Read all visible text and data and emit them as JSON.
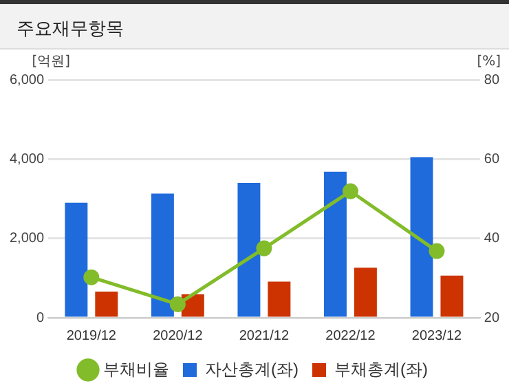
{
  "chart_data": {
    "type": "bar",
    "title": "주요재무항목",
    "ylabel": "[억원]",
    "y2label": "[%]",
    "categories": [
      "2019/12",
      "2020/12",
      "2021/12",
      "2022/12",
      "2023/12"
    ],
    "series": [
      {
        "name": "자산총계(좌)",
        "color": "#1f6bdc",
        "values": [
          2900,
          3130,
          3400,
          3680,
          4050
        ]
      },
      {
        "name": "부채총계(좌)",
        "color": "#cc3300",
        "values": [
          660,
          590,
          910,
          1260,
          1060
        ]
      },
      {
        "name": "부채비율",
        "type": "line",
        "axis": "y2",
        "color": "#82bc2a",
        "marker": "circle",
        "values": [
          30.2,
          23.4,
          37.5,
          51.9,
          36.8
        ]
      }
    ],
    "ylim": [
      0,
      6000
    ],
    "yticks": [
      0,
      {
        "value": 2000,
        "label": "2,000"
      },
      {
        "value": 4000,
        "label": "4,000"
      },
      {
        "value": 6000,
        "label": "6,000"
      }
    ],
    "y2lim": [
      20,
      80
    ],
    "y2ticks": [
      20,
      40,
      60,
      80
    ],
    "grid": "y",
    "legend": "bottom"
  }
}
